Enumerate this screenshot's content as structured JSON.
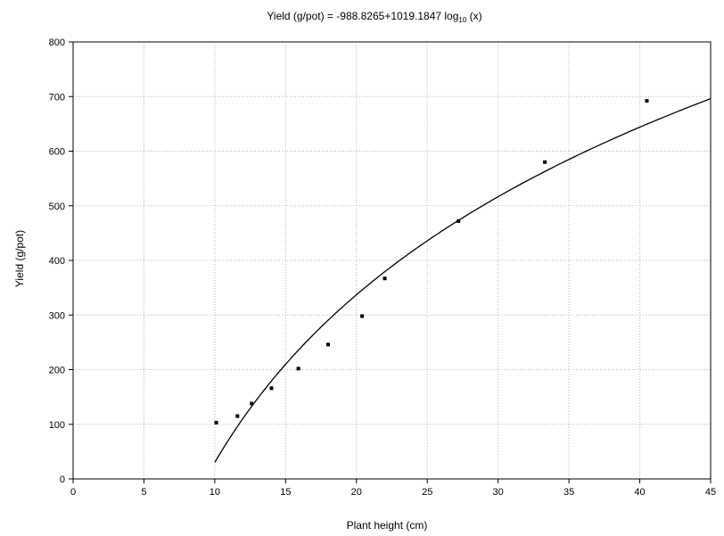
{
  "chart_data": {
    "type": "scatter",
    "title": {
      "prefix": "Yield (g/pot) = -988.8265+1019.1847 log",
      "subscript": "10",
      "suffix": " (x)"
    },
    "xlabel": "Plant height (cm)",
    "ylabel": "Yield (g/pot)",
    "xlim": [
      0,
      45
    ],
    "ylim": [
      0,
      800
    ],
    "xticks": [
      0,
      5,
      10,
      15,
      20,
      25,
      30,
      35,
      40,
      45
    ],
    "yticks": [
      0,
      100,
      200,
      300,
      400,
      500,
      600,
      700,
      800
    ],
    "grid": true,
    "points": {
      "x": [
        10.1,
        11.6,
        12.6,
        14.0,
        15.9,
        18.0,
        20.4,
        22.0,
        27.2,
        33.3,
        40.5
      ],
      "y": [
        103,
        115,
        138,
        166,
        202,
        246,
        298,
        367,
        472,
        580,
        692
      ]
    },
    "fit": {
      "model": "log10",
      "intercept": -988.8265,
      "slope": 1019.1847,
      "x_range": [
        10,
        45
      ]
    }
  }
}
